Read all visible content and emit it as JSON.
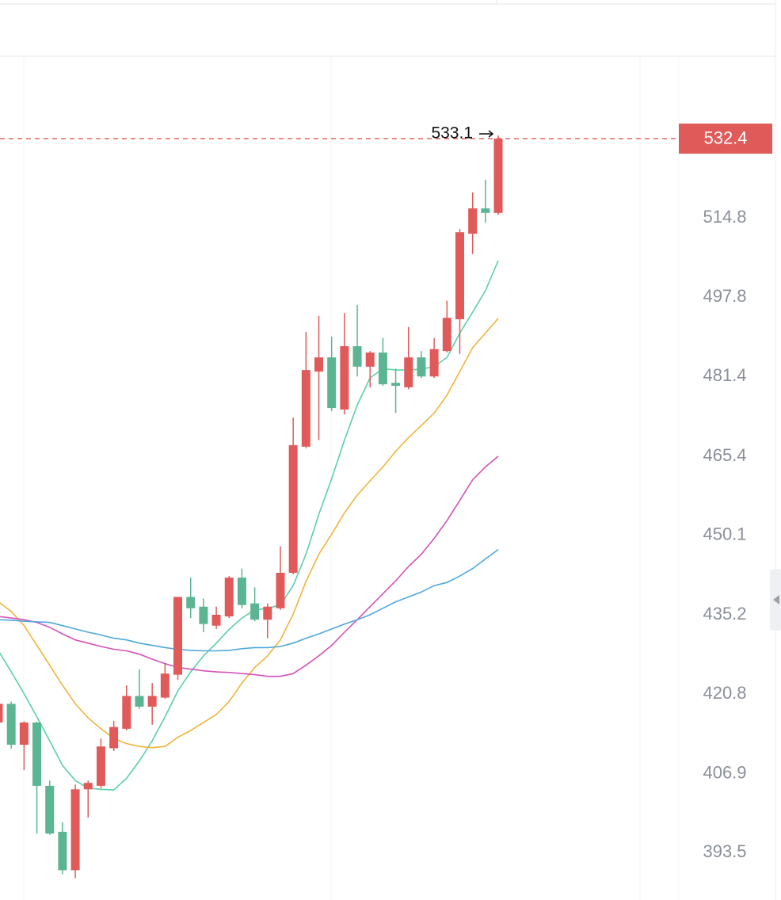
{
  "chart_data": {
    "type": "candlestick",
    "log_scale": true,
    "up_color": "#e05a5a",
    "down_color": "#5bb592",
    "ylim": [
      385.7,
      551.1
    ],
    "yticks": [
      393.5,
      406.9,
      420.8,
      435.2,
      450.1,
      465.4,
      481.4,
      497.8,
      514.8
    ],
    "open": [
      415.8,
      419.1,
      411.9,
      415.8,
      404.8,
      397.0,
      390.6,
      404.2,
      404.8,
      411.3,
      414.7,
      420.5,
      418.6,
      420.2,
      424.3,
      438.5,
      436.7,
      433.2,
      434.9,
      442.1,
      437.3,
      434.3,
      436.4,
      443.0,
      467.3,
      482.4,
      485.3,
      474.7,
      487.6,
      483.4,
      486.3,
      480.1,
      479.2,
      485.3,
      481.4,
      486.6,
      493.2,
      511.4,
      516.9,
      515.9
    ],
    "high": [
      419.5,
      419.5,
      416.0,
      415.9,
      405.7,
      398.6,
      405.0,
      405.7,
      413.0,
      416.1,
      422.4,
      425.3,
      422.8,
      426.3,
      438.5,
      442.1,
      438.2,
      436.7,
      442.4,
      443.8,
      440.3,
      437.3,
      448.0,
      473.1,
      490.6,
      493.9,
      489.6,
      494.5,
      496.2,
      486.6,
      489.3,
      483.0,
      491.6,
      486.6,
      489.3,
      497.1,
      512.4,
      520.4,
      523.2,
      533.1
    ],
    "low": [
      415.4,
      411.2,
      407.5,
      396.7,
      396.5,
      389.9,
      389.3,
      399.4,
      404.4,
      410.8,
      414.4,
      418.2,
      415.4,
      420.0,
      423.4,
      434.6,
      432.0,
      432.6,
      434.6,
      436.4,
      434.0,
      430.9,
      436.1,
      442.7,
      467.0,
      468.6,
      474.4,
      473.7,
      481.4,
      479.2,
      479.5,
      474.0,
      478.8,
      481.1,
      481.1,
      486.3,
      486.0,
      507.0,
      513.8,
      515.5
    ],
    "close": [
      419.1,
      411.9,
      415.8,
      404.8,
      396.7,
      390.6,
      404.2,
      405.3,
      411.6,
      415.0,
      420.5,
      418.6,
      420.5,
      424.5,
      438.5,
      436.4,
      433.5,
      435.2,
      442.1,
      437.0,
      434.3,
      436.7,
      443.0,
      467.6,
      482.7,
      485.3,
      475.0,
      487.6,
      483.4,
      486.3,
      479.8,
      479.5,
      485.3,
      481.4,
      487.0,
      493.5,
      511.7,
      516.9,
      515.9,
      532.4
    ],
    "overlays": [
      {
        "type": "line",
        "color": "#5ccfa8",
        "values": [
          428.6,
          424.8,
          420.9,
          416.8,
          412.6,
          408.3,
          405.7,
          404.4,
          404.2,
          404.1,
          406.1,
          409.1,
          412.6,
          416.8,
          421.4,
          424.8,
          427.7,
          430.0,
          432.5,
          434.6,
          436.1,
          436.4,
          437.0,
          440.6,
          446.5,
          454.1,
          461.0,
          468.6,
          475.6,
          481.1,
          483.0,
          482.7,
          482.7,
          482.9,
          483.4,
          485.3,
          490.3,
          494.7,
          499.2,
          505.6
        ]
      },
      {
        "type": "line",
        "color": "#f0b43c",
        "values": [
          437.6,
          435.8,
          433.2,
          429.6,
          426.0,
          422.4,
          419.1,
          416.6,
          414.7,
          413.0,
          412.1,
          411.6,
          411.4,
          411.6,
          413.2,
          414.4,
          415.8,
          417.2,
          419.5,
          422.8,
          425.6,
          427.7,
          430.6,
          435.3,
          441.4,
          446.5,
          450.3,
          454.4,
          457.8,
          460.6,
          463.3,
          466.4,
          469.1,
          471.5,
          474.0,
          477.6,
          482.4,
          487.3,
          490.3,
          493.4
        ]
      },
      {
        "type": "line",
        "color": "#d452b8",
        "values": [
          434.9,
          434.6,
          434.3,
          433.8,
          432.9,
          431.7,
          430.6,
          430.0,
          429.4,
          428.9,
          428.6,
          428.0,
          427.1,
          426.3,
          425.6,
          425.3,
          425.0,
          424.8,
          424.7,
          424.5,
          424.3,
          424.0,
          424.0,
          424.5,
          426.0,
          427.7,
          429.6,
          432.0,
          434.3,
          436.7,
          439.1,
          441.5,
          444.2,
          446.5,
          449.5,
          452.9,
          456.8,
          460.8,
          463.3,
          465.4
        ]
      },
      {
        "type": "line",
        "color": "#4fa8dc",
        "values": [
          434.3,
          434.2,
          434.0,
          433.9,
          433.8,
          433.2,
          432.6,
          432.0,
          431.5,
          430.9,
          430.6,
          430.0,
          429.6,
          429.2,
          428.9,
          428.7,
          428.6,
          428.6,
          428.7,
          429.0,
          429.2,
          429.2,
          429.4,
          430.0,
          430.9,
          431.7,
          432.6,
          433.5,
          434.3,
          435.2,
          436.4,
          437.6,
          438.5,
          439.4,
          440.6,
          441.2,
          442.4,
          443.8,
          445.6,
          447.4
        ]
      }
    ]
  }
}
